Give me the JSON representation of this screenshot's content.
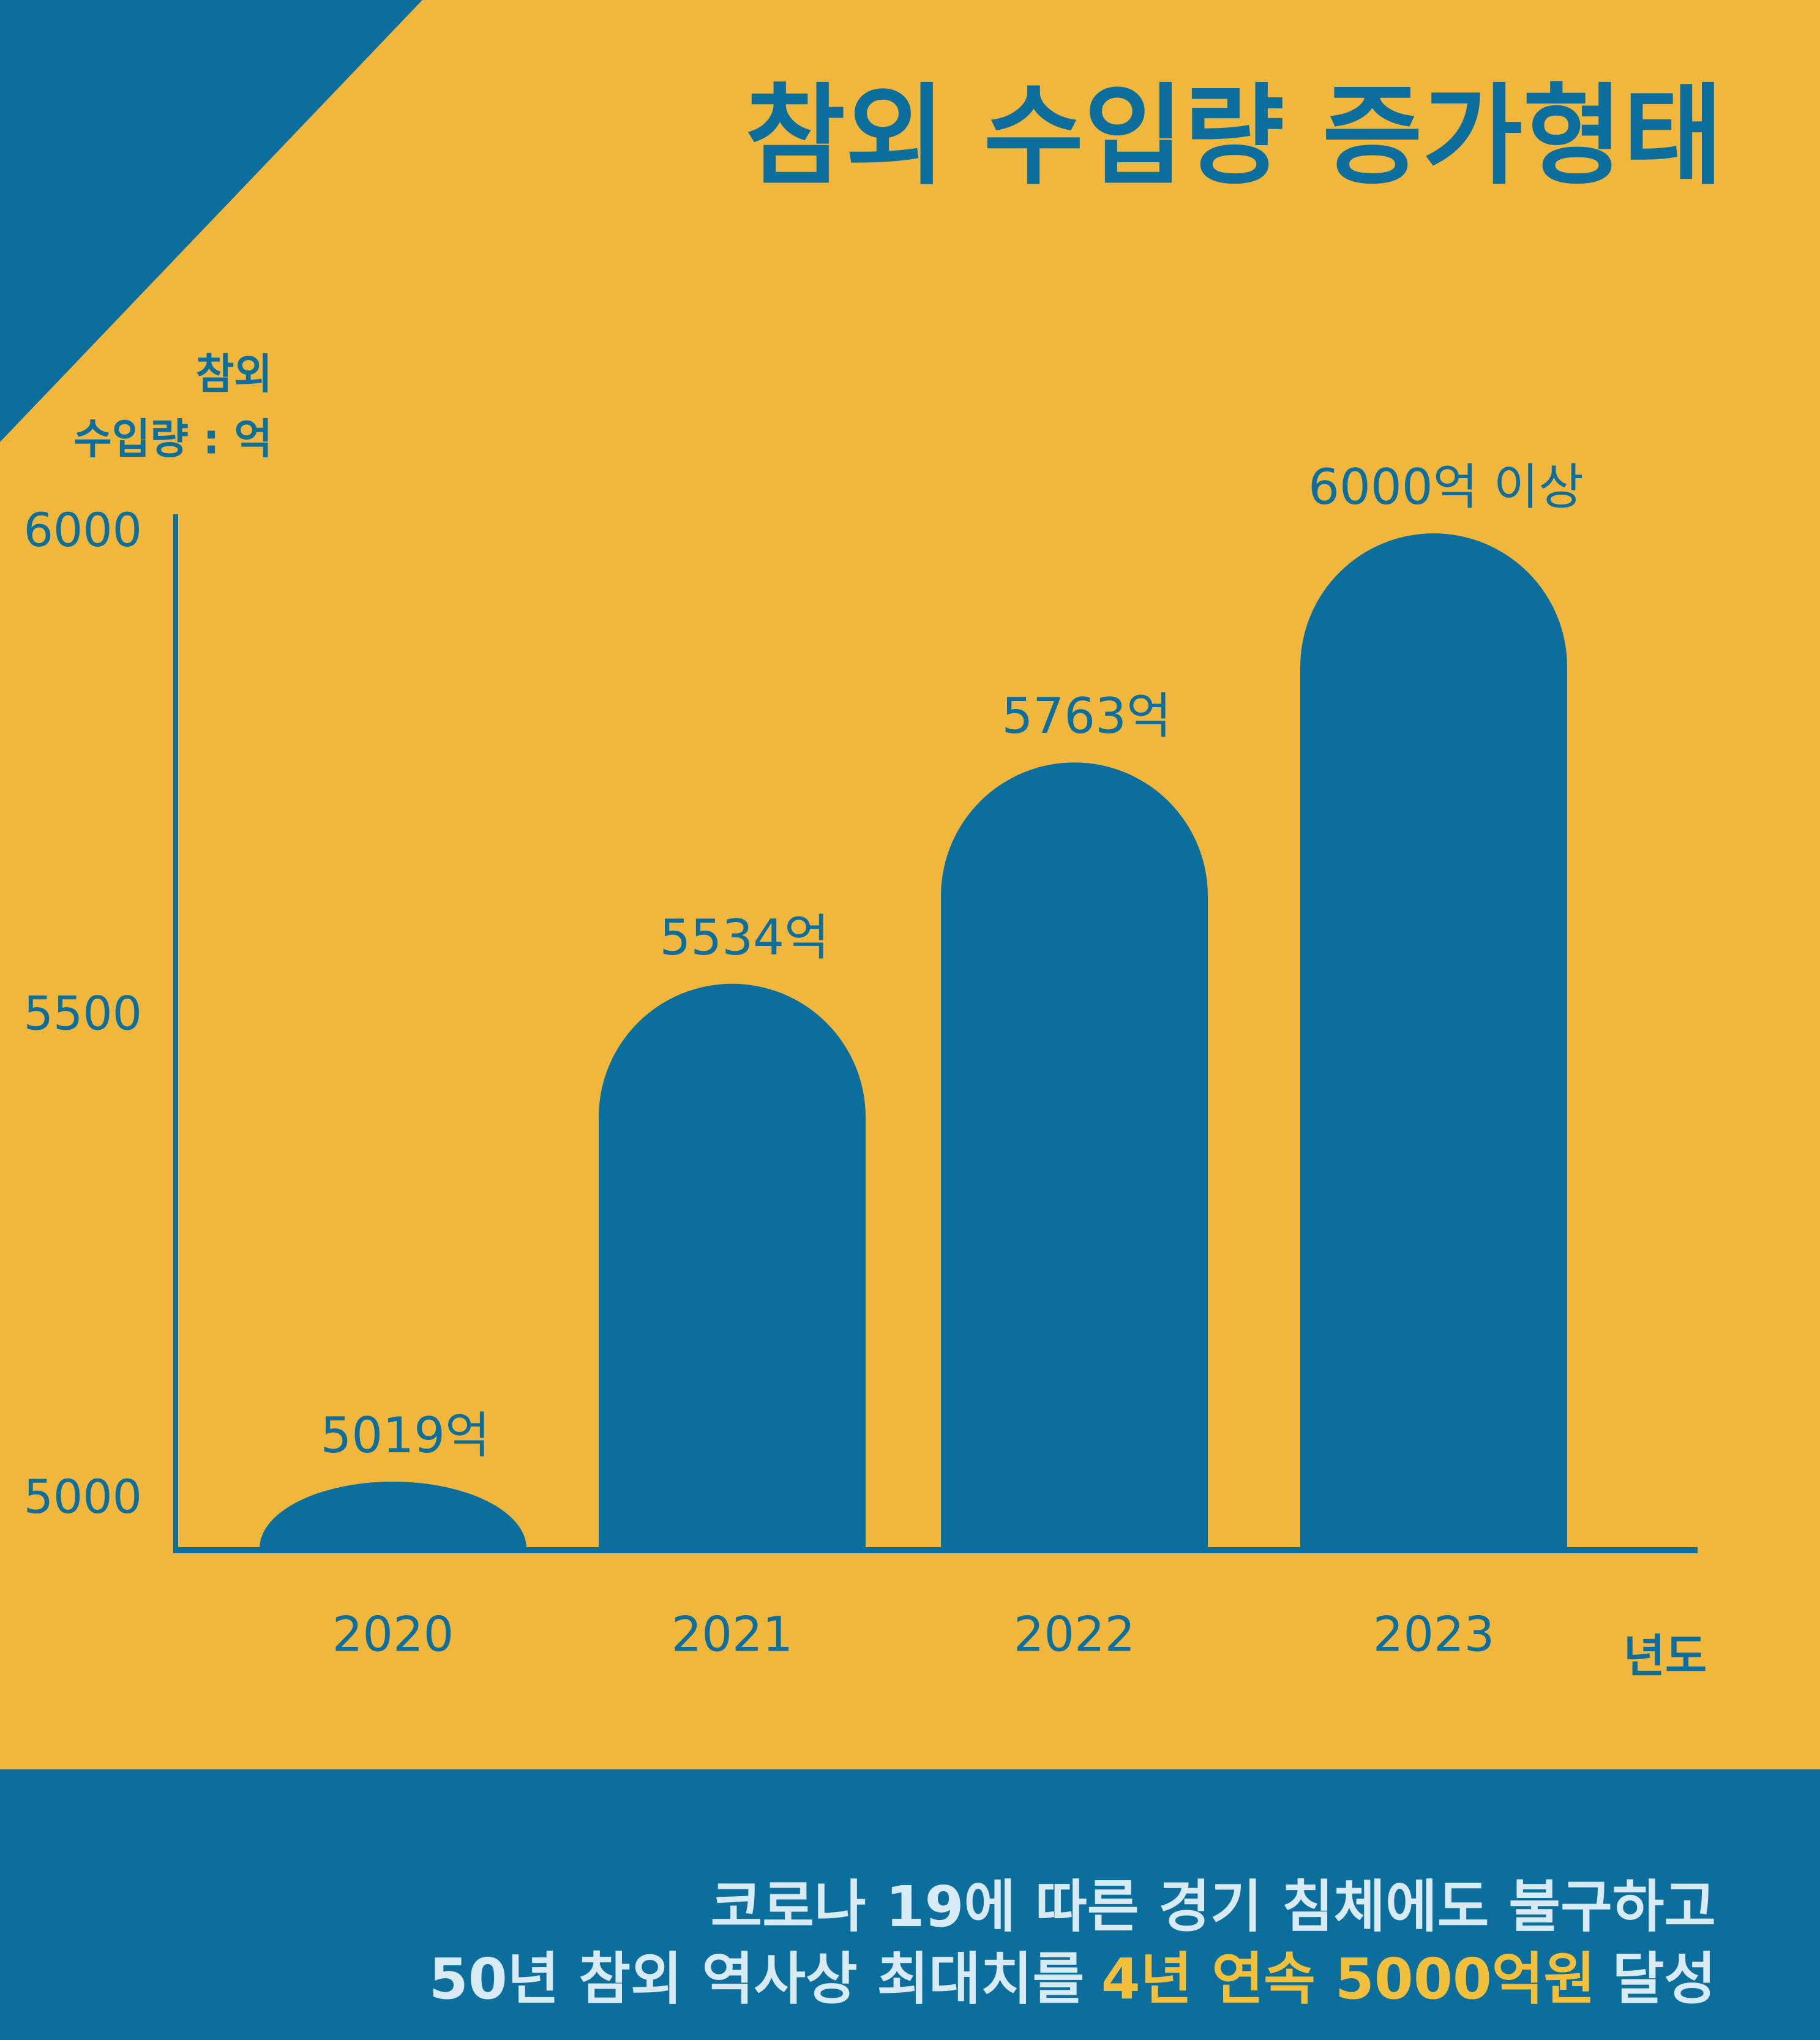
{
  "chart_data": {
    "type": "bar",
    "title": "참외 수입량 증가형태",
    "y_label": [
      "참외",
      "수입량 : 억"
    ],
    "x_label": "년도",
    "categories": [
      "2020",
      "2021",
      "2022",
      "2023"
    ],
    "values": [
      5019,
      5534,
      5763,
      6000
    ],
    "value_labels": [
      "5019억",
      "5534억",
      "5763억",
      "6000억 이상"
    ],
    "color": "#0b6e9c",
    "ylim": [
      4950,
      6050
    ],
    "yticks": [
      5000,
      5500,
      6000
    ]
  },
  "footer": {
    "line1": "코로나 19에 따른 경기 침체에도 불구하고",
    "line2": [
      "50년 참외 역사상 최대치를",
      "4년 연속 5000억원",
      "달성"
    ]
  }
}
